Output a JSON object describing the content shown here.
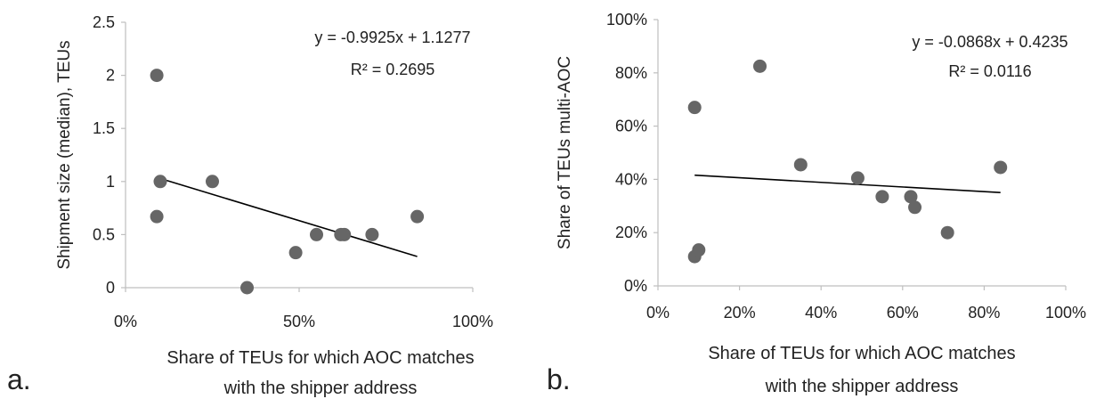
{
  "chart_data": [
    {
      "type": "scatter",
      "panel_label": "a.",
      "xlabel_lines": [
        "Share of TEUs for which AOC matches",
        "with the shipper address"
      ],
      "ylabel": "Shipment size (median), TEUs",
      "xlim": [
        0,
        1
      ],
      "ylim": [
        0,
        2.5
      ],
      "x_ticks": [
        0,
        0.5,
        1
      ],
      "x_tick_labels": [
        "0%",
        "50%",
        "100%"
      ],
      "y_ticks": [
        0,
        0.5,
        1,
        1.5,
        2,
        2.5
      ],
      "y_tick_labels": [
        "0",
        "0.5",
        "1",
        "1.5",
        "2",
        "2.5"
      ],
      "grid": false,
      "points": [
        {
          "x": 0.09,
          "y": 2.0
        },
        {
          "x": 0.09,
          "y": 0.67
        },
        {
          "x": 0.1,
          "y": 1.0
        },
        {
          "x": 0.25,
          "y": 1.0
        },
        {
          "x": 0.35,
          "y": 0.0
        },
        {
          "x": 0.49,
          "y": 0.33
        },
        {
          "x": 0.55,
          "y": 0.5
        },
        {
          "x": 0.62,
          "y": 0.5
        },
        {
          "x": 0.63,
          "y": 0.5
        },
        {
          "x": 0.71,
          "y": 0.5
        },
        {
          "x": 0.84,
          "y": 0.67
        }
      ],
      "trendline": {
        "slope": -0.9925,
        "intercept": 1.1277,
        "x_range": [
          0.09,
          0.84
        ]
      },
      "equation": "y = -0.9925x  + 1.1277",
      "r_squared": "R² = 0.2695",
      "colors": {
        "marker": "#666666",
        "line": "#000000",
        "axis": "#bfbfbf"
      }
    },
    {
      "type": "scatter",
      "panel_label": "b.",
      "xlabel_lines": [
        "Share of TEUs for which AOC matches",
        "with the shipper address"
      ],
      "ylabel": "Share of TEUs multi-AOC",
      "xlim": [
        0,
        1
      ],
      "ylim": [
        0,
        1
      ],
      "x_ticks": [
        0,
        0.2,
        0.4,
        0.6,
        0.8,
        1
      ],
      "x_tick_labels": [
        "0%",
        "20%",
        "40%",
        "60%",
        "80%",
        "100%"
      ],
      "y_ticks": [
        0,
        0.2,
        0.4,
        0.6,
        0.8,
        1
      ],
      "y_tick_labels": [
        "0%",
        "20%",
        "40%",
        "60%",
        "80%",
        "100%"
      ],
      "grid": false,
      "points": [
        {
          "x": 0.09,
          "y": 0.67
        },
        {
          "x": 0.09,
          "y": 0.11
        },
        {
          "x": 0.1,
          "y": 0.135
        },
        {
          "x": 0.25,
          "y": 0.825
        },
        {
          "x": 0.35,
          "y": 0.455
        },
        {
          "x": 0.49,
          "y": 0.405
        },
        {
          "x": 0.55,
          "y": 0.335
        },
        {
          "x": 0.62,
          "y": 0.335
        },
        {
          "x": 0.63,
          "y": 0.295
        },
        {
          "x": 0.71,
          "y": 0.2
        },
        {
          "x": 0.84,
          "y": 0.445
        }
      ],
      "trendline": {
        "slope": -0.0868,
        "intercept": 0.4235,
        "x_range": [
          0.09,
          0.84
        ]
      },
      "equation": "y = -0.0868x  + 0.4235",
      "r_squared": "R² = 0.0116",
      "colors": {
        "marker": "#666666",
        "line": "#000000",
        "axis": "#bfbfbf"
      }
    }
  ]
}
